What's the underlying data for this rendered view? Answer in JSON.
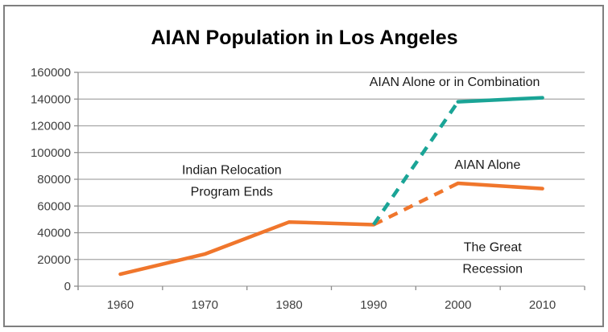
{
  "title": "AIAN Population in Los Angeles",
  "colors": {
    "aian_alone": "#F0762C",
    "aian_combination": "#1AA496",
    "gridline": "#A6A6A6",
    "axis": "#8C8C8C",
    "frame_border": "#7F7F7F",
    "tick_text": "#3F3F3F",
    "annotation_text": "#1A1A1A",
    "title_text": "#000000",
    "background": "#FFFFFF"
  },
  "chart_data": {
    "type": "line",
    "title": "AIAN Population in Los Angeles",
    "xlabel": "",
    "ylabel": "",
    "x": [
      1960,
      1970,
      1980,
      1990,
      2000,
      2010
    ],
    "x_tick_labels": [
      "1960",
      "1970",
      "1980",
      "1990",
      "2000",
      "2010"
    ],
    "y_ticks": [
      0,
      20000,
      40000,
      60000,
      80000,
      100000,
      120000,
      140000,
      160000
    ],
    "y_tick_labels": [
      "0",
      "20000",
      "40000",
      "60000",
      "80000",
      "100000",
      "120000",
      "140000",
      "160000"
    ],
    "ylim": [
      0,
      160000
    ],
    "grid": true,
    "legend_position": "none (series labeled by inline annotations)",
    "series": [
      {
        "id": "aian-alone",
        "name": "AIAN Alone",
        "color": "#F0762C",
        "values": [
          9000,
          24000,
          48000,
          46000,
          77000,
          73000
        ],
        "segments": [
          {
            "from": 1960,
            "to": 1990,
            "style": "solid"
          },
          {
            "from": 1990,
            "to": 2000,
            "style": "dashed"
          },
          {
            "from": 2000,
            "to": 2010,
            "style": "solid"
          }
        ]
      },
      {
        "id": "aian-combination",
        "name": "AIAN Alone or in Combination",
        "color": "#1AA496",
        "values": [
          null,
          null,
          null,
          46000,
          138000,
          141000
        ],
        "segments": [
          {
            "from": 1990,
            "to": 2000,
            "style": "dashed"
          },
          {
            "from": 2000,
            "to": 2010,
            "style": "solid"
          }
        ]
      }
    ],
    "annotations": [
      {
        "id": "indian-relocation",
        "lines": [
          "Indian Relocation",
          "Program Ends"
        ],
        "x_year": 1973.2,
        "y_value": 79000
      },
      {
        "id": "combination-series-label",
        "lines": [
          "AIAN Alone or in Combination"
        ],
        "x_year": 1999.6,
        "y_value": 153000
      },
      {
        "id": "alone-series-label",
        "lines": [
          "AIAN Alone"
        ],
        "x_year": 2003.5,
        "y_value": 91000
      },
      {
        "id": "great-recession",
        "lines": [
          "The Great",
          "Recession"
        ],
        "x_year": 2004.1,
        "y_value": 21500
      }
    ]
  }
}
